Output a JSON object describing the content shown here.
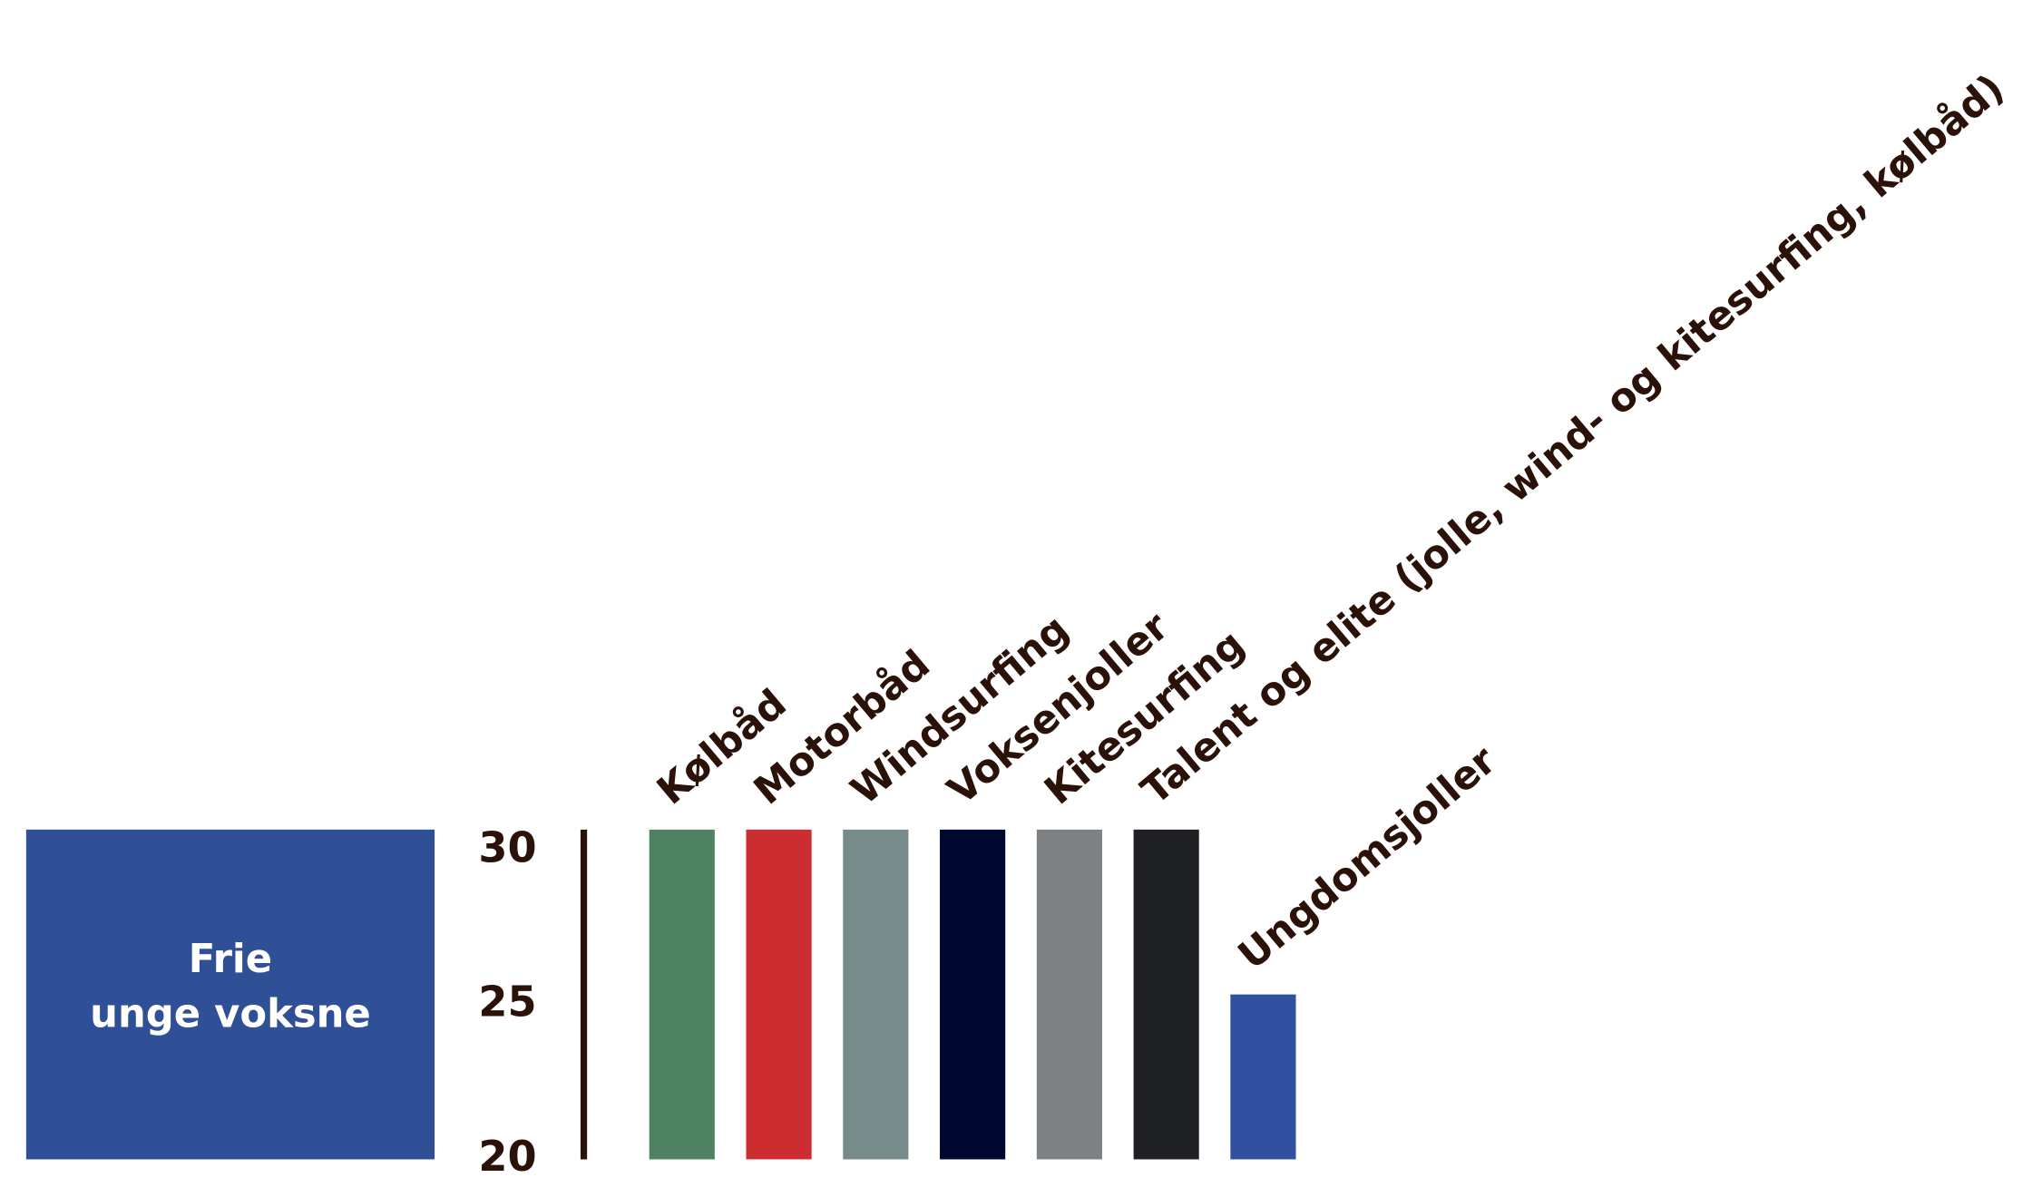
{
  "chart_data": {
    "type": "bar",
    "group_label": [
      "Frie",
      "unge voksne"
    ],
    "group_color": "#2f4f96",
    "categories": [
      "Kølbåd",
      "Motorbåd",
      "Windsurfing",
      "Voksenjoller",
      "Kitesurfing",
      "Talent og elite (jolle, wind- og kitesurfing, kølbåd)",
      "Ungdomsjoller"
    ],
    "values": [
      30,
      30,
      30,
      30,
      30,
      30,
      25
    ],
    "colors": [
      "#4f8163",
      "#cc2d30",
      "#778b8b",
      "#00072e",
      "#7d8184",
      "#1f2024",
      "#3250a0"
    ],
    "ylim": [
      20,
      30
    ],
    "yticks": [
      20,
      25,
      30
    ]
  }
}
